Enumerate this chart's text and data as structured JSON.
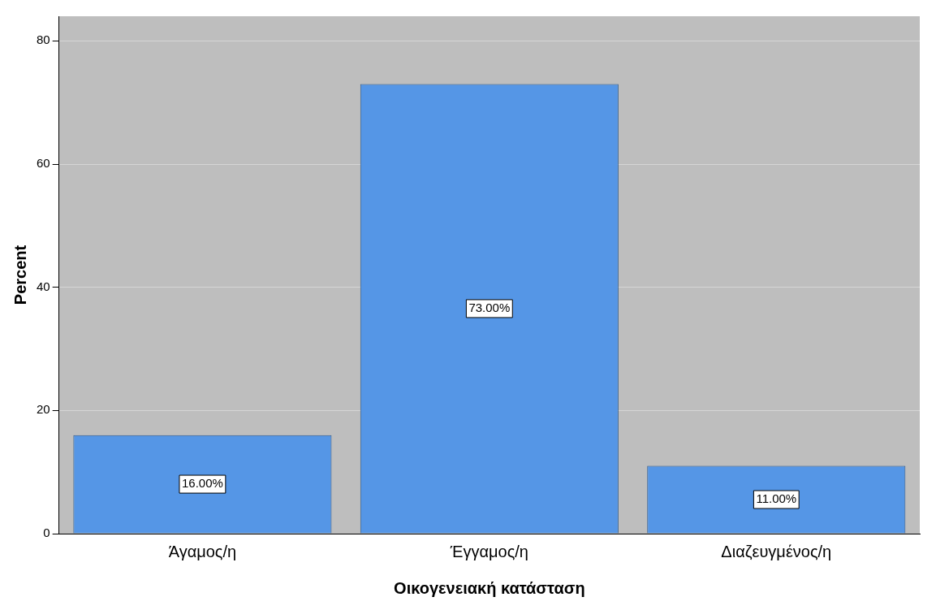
{
  "chart_data": {
    "type": "bar",
    "xlabel": "Οικογενειακή κατάσταση",
    "ylabel": "Percent",
    "categories": [
      "Άγαμος/η",
      "Έγγαμος/η",
      "Διαζευγμένος/η"
    ],
    "values": [
      16,
      73,
      11
    ],
    "value_labels": [
      "16.00%",
      "73.00%",
      "11.00%"
    ],
    "color": "#5596e6",
    "ylim": [
      0,
      84
    ],
    "yticks": [
      0,
      20,
      40,
      60,
      80
    ],
    "grid": "y",
    "legend": false
  }
}
